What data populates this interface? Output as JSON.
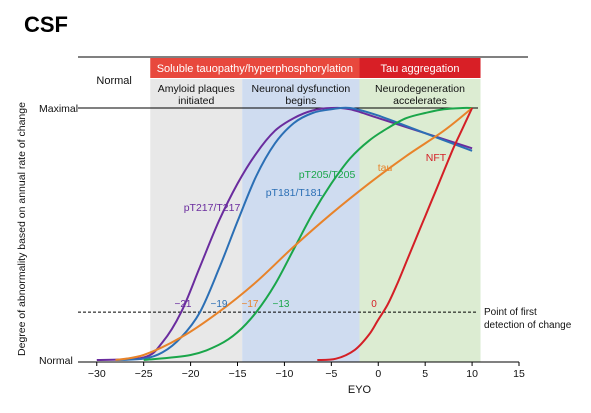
{
  "figure": {
    "title": "CSF"
  },
  "colors": {
    "band_gray": "#e8e8e8",
    "band_blue": "#cfdcf0",
    "band_green": "#dcecd2",
    "header_red_light": "#e8483d",
    "header_red_dark": "#d81f26",
    "pT217": "#6a2c9e",
    "pT181": "#2b6fb5",
    "pT205": "#1aa64a",
    "tau": "#e8832a",
    "NFT": "#d41f26"
  },
  "chart_data": {
    "type": "line",
    "xlabel": "EYO",
    "ylabel": "Degree of abnormality based on annual rate of change",
    "xlim": [
      -32,
      15
    ],
    "xticks": [
      -30,
      -25,
      -20,
      -15,
      -10,
      -5,
      0,
      5,
      10,
      15
    ],
    "ylim": [
      0,
      1
    ],
    "ytick_labels": [
      {
        "value": 0,
        "label": "Normal"
      },
      {
        "value": 1,
        "label": "Maximal"
      }
    ],
    "threshold": {
      "y": 0.19,
      "label": [
        "Point of first",
        "detection of change"
      ]
    },
    "stages": [
      {
        "x0": -32,
        "x1": -24.3,
        "header": "Normal",
        "subheader": [],
        "fill": "none"
      },
      {
        "x0": -24.3,
        "x1": -14.5,
        "header": "Soluble tauopathy/hyperphosphorylation",
        "subheader": [
          "Amyloid plaques",
          "initiated"
        ],
        "fill": "gray"
      },
      {
        "x0": -14.5,
        "x1": -2,
        "header": "",
        "subheader": [
          "Neuronal dysfunction",
          "begins"
        ],
        "fill": "blue"
      },
      {
        "x0": -2,
        "x1": 10.9,
        "header": "Tau aggregation",
        "subheader": [
          "Neurodegeneration",
          "accelerates"
        ],
        "fill": "green"
      }
    ],
    "series": [
      {
        "name": "pT217/T217",
        "detection_label": "−21",
        "x": [
          -30,
          -25,
          -23,
          -21,
          -19,
          -17,
          -15,
          -13,
          -11,
          -9,
          -7,
          -5,
          -3,
          0,
          5,
          10
        ],
        "y": [
          0,
          0.01,
          0.07,
          0.19,
          0.37,
          0.55,
          0.7,
          0.82,
          0.91,
          0.96,
          0.99,
          1.0,
          0.995,
          0.96,
          0.9,
          0.84
        ]
      },
      {
        "name": "pT181/T181",
        "detection_label": "−19",
        "x": [
          -28,
          -25,
          -23,
          -21,
          -19,
          -17,
          -15,
          -13,
          -11,
          -9,
          -7,
          -5,
          -3,
          0,
          5,
          10
        ],
        "y": [
          0,
          0.005,
          0.03,
          0.09,
          0.19,
          0.36,
          0.55,
          0.73,
          0.86,
          0.94,
          0.98,
          0.995,
          1.0,
          0.97,
          0.9,
          0.83
        ]
      },
      {
        "name": "pT205/T205",
        "detection_label": "−13",
        "x": [
          -25,
          -20,
          -17,
          -15,
          -13,
          -11,
          -9,
          -7,
          -5,
          -3,
          -1,
          1,
          3,
          5,
          7,
          9,
          10
        ],
        "y": [
          0,
          0.02,
          0.06,
          0.11,
          0.19,
          0.3,
          0.44,
          0.58,
          0.7,
          0.8,
          0.87,
          0.92,
          0.96,
          0.98,
          0.995,
          1.0,
          1.0
        ]
      },
      {
        "name": "tau",
        "detection_label": "−17",
        "x": [
          -28,
          -25,
          -21,
          -17,
          -13,
          -9,
          -5,
          -1,
          3,
          7,
          10
        ],
        "y": [
          0,
          0.02,
          0.09,
          0.19,
          0.31,
          0.45,
          0.58,
          0.7,
          0.81,
          0.91,
          1.0
        ]
      },
      {
        "name": "NFT",
        "detection_label": "0",
        "x": [
          -6.5,
          -4.5,
          -2.5,
          -1,
          0,
          1,
          2,
          3,
          4,
          5,
          6,
          7,
          8,
          9,
          10
        ],
        "y": [
          0.0,
          0.005,
          0.04,
          0.1,
          0.16,
          0.22,
          0.3,
          0.39,
          0.48,
          0.57,
          0.66,
          0.75,
          0.84,
          0.92,
          1.0
        ]
      }
    ]
  }
}
